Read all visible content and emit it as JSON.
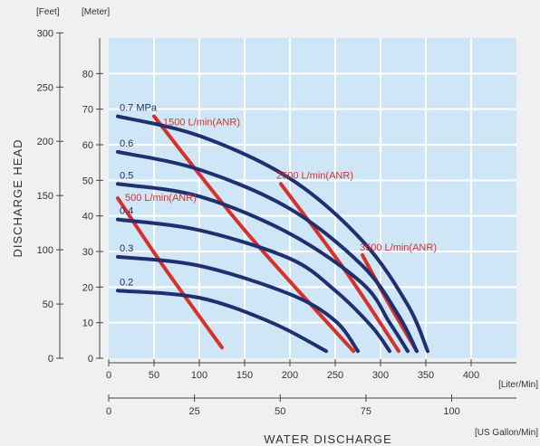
{
  "chart_data": {
    "type": "line",
    "title": "",
    "colors": {
      "plot_bg": "#cfe6f6",
      "pressure_curve": "#1f2f70",
      "air_curve": "#d6312a",
      "grid": "#ffffff"
    },
    "axes": {
      "y_feet": {
        "unit_label": "[Feet]",
        "ticks": [
          0,
          50,
          100,
          150,
          200,
          250,
          300
        ],
        "range": [
          0,
          300
        ]
      },
      "y_meter": {
        "unit_label": "[Meter]",
        "ticks": [
          0,
          10,
          20,
          30,
          40,
          50,
          60,
          70,
          80
        ],
        "range": [
          0,
          90
        ]
      },
      "x_liter": {
        "unit_label": "[Liter/Min]",
        "ticks": [
          0,
          50,
          100,
          150,
          200,
          250,
          300,
          350,
          400
        ],
        "range": [
          0,
          450
        ]
      },
      "x_gallon": {
        "unit_label": "[US Gallon/Min]",
        "ticks": [
          0,
          25,
          50,
          75,
          100
        ],
        "range": [
          0,
          120
        ]
      },
      "ylabel": "DISCHARGE HEAD",
      "xlabel": "WATER DISCHARGE"
    },
    "pressure_series": [
      {
        "label": "0.7 MPa",
        "points": [
          [
            10,
            68
          ],
          [
            100,
            62.5
          ],
          [
            200,
            50.5
          ],
          [
            280,
            33
          ],
          [
            330,
            15
          ],
          [
            352,
            2
          ]
        ]
      },
      {
        "label": "0.6",
        "points": [
          [
            10,
            58
          ],
          [
            100,
            53
          ],
          [
            200,
            42
          ],
          [
            280,
            26
          ],
          [
            320,
            12
          ],
          [
            340,
            2
          ]
        ]
      },
      {
        "label": "0.5",
        "points": [
          [
            10,
            49
          ],
          [
            100,
            45.5
          ],
          [
            200,
            35
          ],
          [
            280,
            21
          ],
          [
            310,
            10
          ],
          [
            330,
            2
          ]
        ]
      },
      {
        "label": "0.4",
        "points": [
          [
            10,
            39
          ],
          [
            100,
            36
          ],
          [
            200,
            28
          ],
          [
            250,
            19
          ],
          [
            290,
            9
          ],
          [
            310,
            2
          ]
        ]
      },
      {
        "label": "0.3",
        "points": [
          [
            10,
            28.5
          ],
          [
            100,
            26
          ],
          [
            200,
            18
          ],
          [
            250,
            10.5
          ],
          [
            275,
            2
          ]
        ]
      },
      {
        "label": "0.2",
        "points": [
          [
            10,
            19
          ],
          [
            100,
            17
          ],
          [
            180,
            10
          ],
          [
            240,
            2
          ]
        ]
      }
    ],
    "air_series": [
      {
        "label": "500 L/min(ANR)",
        "points": [
          [
            10,
            45
          ],
          [
            60,
            26
          ],
          [
            125,
            3
          ]
        ]
      },
      {
        "label": "1500 L/min(ANR)",
        "points": [
          [
            50,
            68
          ],
          [
            150,
            36
          ],
          [
            270,
            2
          ]
        ]
      },
      {
        "label": "2500 L/min(ANR)",
        "points": [
          [
            190,
            49
          ],
          [
            260,
            25
          ],
          [
            320,
            2
          ]
        ]
      },
      {
        "label": "3500 L/min(ANR)",
        "points": [
          [
            280,
            29
          ],
          [
            310,
            15
          ],
          [
            340,
            2
          ]
        ]
      }
    ]
  }
}
